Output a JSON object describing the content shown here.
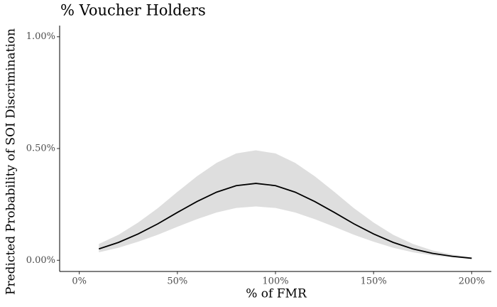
{
  "chart_data": {
    "type": "line",
    "title": "% Voucher Holders",
    "x_label": "% of FMR",
    "y_label": "Predicted Probability of SOI Discrimination",
    "x": [
      10,
      20,
      30,
      40,
      50,
      60,
      70,
      80,
      90,
      100,
      110,
      120,
      130,
      140,
      150,
      160,
      170,
      180,
      190,
      200
    ],
    "values": [
      0.051,
      0.08,
      0.118,
      0.163,
      0.214,
      0.263,
      0.305,
      0.334,
      0.344,
      0.334,
      0.305,
      0.263,
      0.214,
      0.163,
      0.118,
      0.08,
      0.051,
      0.031,
      0.018,
      0.009
    ],
    "lower": [
      0.036,
      0.056,
      0.083,
      0.114,
      0.15,
      0.184,
      0.214,
      0.234,
      0.241,
      0.234,
      0.214,
      0.184,
      0.15,
      0.114,
      0.083,
      0.056,
      0.036,
      0.022,
      0.013,
      0.006
    ],
    "upper": [
      0.073,
      0.114,
      0.169,
      0.233,
      0.306,
      0.376,
      0.436,
      0.478,
      0.492,
      0.478,
      0.436,
      0.376,
      0.306,
      0.233,
      0.169,
      0.114,
      0.073,
      0.044,
      0.026,
      0.013
    ],
    "color": "#000000",
    "band_color": "#dedede",
    "xlim": [
      -10,
      210
    ],
    "ylim": [
      -0.05,
      1.05
    ],
    "xticks": [
      {
        "value": 0,
        "label": "0%"
      },
      {
        "value": 50,
        "label": "50%"
      },
      {
        "value": 100,
        "label": "100%"
      },
      {
        "value": 150,
        "label": "150%"
      },
      {
        "value": 200,
        "label": "200%"
      }
    ],
    "yticks": [
      {
        "value": 0,
        "label": "0.00%"
      },
      {
        "value": 0.5,
        "label": "0.50%"
      },
      {
        "value": 1,
        "label": "1.00%"
      }
    ],
    "grid": false
  }
}
